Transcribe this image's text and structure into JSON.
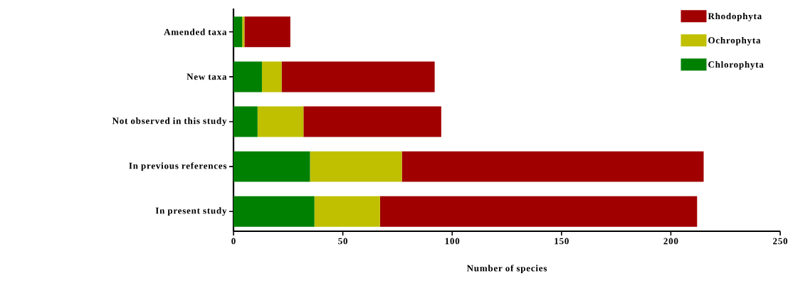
{
  "chart_data": {
    "type": "bar",
    "orientation": "horizontal",
    "stacked": true,
    "xlabel": "Number of species",
    "categories": [
      "Amended taxa",
      "New taxa",
      "Not observed in this study",
      "In previous references",
      "In present study"
    ],
    "series": [
      {
        "name": "Chlorophyta",
        "color": "#008000",
        "values": [
          4,
          13,
          11,
          35,
          37
        ]
      },
      {
        "name": "Ochrophyta",
        "color": "#c0c000",
        "values": [
          1,
          9,
          21,
          42,
          30
        ]
      },
      {
        "name": "Rhodophyta",
        "color": "#a00000",
        "values": [
          21,
          70,
          63,
          138,
          145
        ]
      }
    ],
    "xlim": [
      0,
      250
    ],
    "xticks": [
      0,
      50,
      100,
      150,
      200,
      250
    ],
    "grid": false,
    "legend": "top right"
  }
}
